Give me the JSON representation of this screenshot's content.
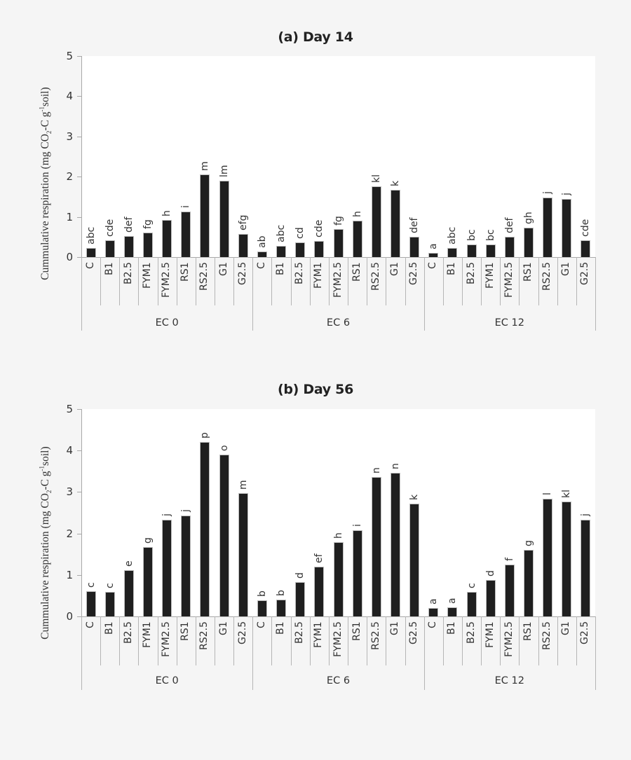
{
  "figure": {
    "ylabel_prefix": "Cummulative respiration (mg  CO",
    "ylabel_sub": "2",
    "ylabel_mid": "-C g",
    "ylabel_sup": "-1",
    "ylabel_suffix": "soil)"
  },
  "chart_data": [
    {
      "type": "bar",
      "title": "(a) Day 14",
      "xlabel": "",
      "ylabel": "Cummulative respiration (mg CO2-C g-1 soil)",
      "ylim": [
        0,
        5
      ],
      "yticks": [
        0,
        1,
        2,
        3,
        4,
        5
      ],
      "grid": false,
      "legend": null,
      "groups": [
        "EC 0",
        "EC 6",
        "EC 12"
      ],
      "categories": [
        "C",
        "B1",
        "B2.5",
        "FYM1",
        "FYM2.5",
        "RS1",
        "RS2.5",
        "G1",
        "G2.5"
      ],
      "series": [
        {
          "name": "EC 0",
          "values": [
            0.21,
            0.4,
            0.51,
            0.6,
            0.91,
            1.12,
            2.03,
            1.88,
            0.56
          ],
          "letters": [
            "abc",
            "cde",
            "def",
            "fg",
            "h",
            "i",
            "m",
            "lm",
            "efg"
          ]
        },
        {
          "name": "EC 6",
          "values": [
            0.12,
            0.26,
            0.35,
            0.38,
            0.68,
            0.89,
            1.75,
            1.66,
            0.49
          ],
          "letters": [
            "ab",
            "abc",
            "cd",
            "cde",
            "fg",
            "h",
            "kl",
            "k",
            "def"
          ]
        },
        {
          "name": "EC 12",
          "values": [
            0.09,
            0.21,
            0.29,
            0.29,
            0.49,
            0.72,
            1.46,
            1.42,
            0.4
          ],
          "letters": [
            "a",
            "abc",
            "bc",
            "bc",
            "def",
            "gh",
            "j",
            "j",
            "cde"
          ]
        }
      ]
    },
    {
      "type": "bar",
      "title": "(b) Day 56",
      "xlabel": "",
      "ylabel": "Cummulative respiration (mg CO2-C g-1 soil)",
      "ylim": [
        0,
        5
      ],
      "yticks": [
        0,
        1,
        2,
        3,
        4,
        5
      ],
      "grid": false,
      "legend": null,
      "groups": [
        "EC 0",
        "EC 6",
        "EC 12"
      ],
      "categories": [
        "C",
        "B1",
        "B2.5",
        "FYM1",
        "FYM2.5",
        "RS1",
        "RS2.5",
        "G1",
        "G2.5"
      ],
      "series": [
        {
          "name": "EC 0",
          "values": [
            0.59,
            0.57,
            1.1,
            1.66,
            2.31,
            2.41,
            4.19,
            3.88,
            2.95
          ],
          "letters": [
            "c",
            "c",
            "e",
            "g",
            "j",
            "j",
            "p",
            "o",
            "m"
          ]
        },
        {
          "name": "EC 6",
          "values": [
            0.37,
            0.39,
            0.81,
            1.19,
            1.77,
            2.06,
            3.34,
            3.45,
            2.7
          ],
          "letters": [
            "b",
            "b",
            "d",
            "ef",
            "h",
            "i",
            "n",
            "n",
            "k"
          ]
        },
        {
          "name": "EC 12",
          "values": [
            0.19,
            0.2,
            0.57,
            0.86,
            1.23,
            1.58,
            2.82,
            2.76,
            2.32
          ],
          "letters": [
            "a",
            "a",
            "c",
            "d",
            "f",
            "g",
            "l",
            "kl",
            "j"
          ]
        }
      ]
    }
  ]
}
